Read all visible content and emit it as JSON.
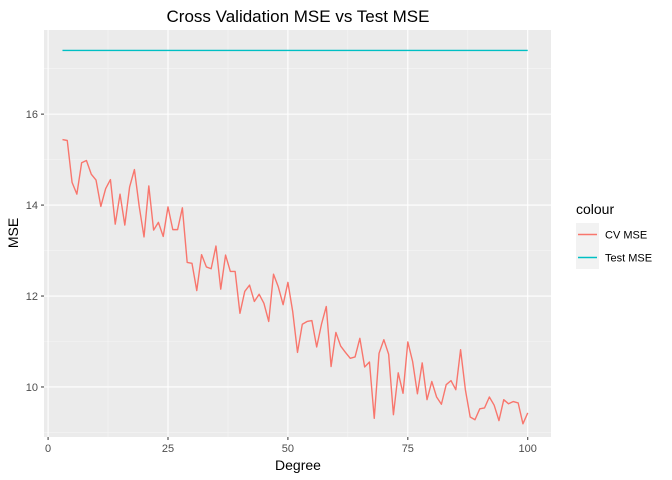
{
  "chart_data": {
    "type": "line",
    "title": "Cross Validation MSE vs Test MSE",
    "xlabel": "Degree",
    "ylabel": "MSE",
    "xlim": [
      -0.85,
      104.85
    ],
    "ylim": [
      8.9,
      17.85
    ],
    "x_ticks": [
      0,
      25,
      50,
      75,
      100
    ],
    "x_tick_labels": [
      "0",
      "25",
      "50",
      "75",
      "100"
    ],
    "y_ticks": [
      10,
      12,
      14,
      16
    ],
    "y_tick_labels": [
      "10",
      "12",
      "14",
      "16"
    ],
    "grid": true,
    "legend": {
      "title": "colour",
      "position": "right",
      "entries": [
        "CV MSE",
        "Test MSE"
      ]
    },
    "series": [
      {
        "name": "CV MSE",
        "color": "#F8766D",
        "x": [
          3,
          4,
          5,
          6,
          7,
          8,
          9,
          10,
          11,
          12,
          13,
          14,
          15,
          16,
          17,
          18,
          19,
          20,
          21,
          22,
          23,
          24,
          25,
          26,
          27,
          28,
          29,
          30,
          31,
          32,
          33,
          34,
          35,
          36,
          37,
          38,
          39,
          40,
          41,
          42,
          43,
          44,
          45,
          46,
          47,
          48,
          49,
          50,
          51,
          52,
          53,
          54,
          55,
          56,
          57,
          58,
          59,
          60,
          61,
          62,
          63,
          64,
          65,
          66,
          67,
          68,
          69,
          70,
          71,
          72,
          73,
          74,
          75,
          76,
          77,
          78,
          79,
          80,
          81,
          82,
          83,
          84,
          85,
          86,
          87,
          88,
          89,
          90,
          91,
          92,
          93,
          94,
          95,
          96,
          97,
          98,
          99,
          100
        ],
        "y": [
          15.44,
          15.42,
          14.5,
          14.24,
          14.93,
          14.98,
          14.68,
          14.55,
          13.97,
          14.36,
          14.56,
          13.58,
          14.24,
          13.56,
          14.4,
          14.78,
          13.97,
          13.3,
          14.42,
          13.45,
          13.62,
          13.31,
          13.96,
          13.46,
          13.46,
          13.94,
          12.74,
          12.72,
          12.12,
          12.91,
          12.64,
          12.6,
          13.1,
          12.15,
          12.9,
          12.54,
          12.54,
          11.62,
          12.1,
          12.24,
          11.88,
          12.04,
          11.84,
          11.44,
          12.48,
          12.2,
          11.81,
          12.3,
          11.66,
          10.76,
          11.38,
          11.44,
          11.46,
          10.88,
          11.38,
          11.77,
          10.45,
          11.2,
          10.9,
          10.76,
          10.63,
          10.66,
          11.07,
          10.44,
          10.55,
          9.31,
          10.74,
          11.04,
          10.72,
          9.39,
          10.31,
          9.86,
          10.99,
          10.56,
          9.85,
          10.53,
          9.72,
          10.12,
          9.78,
          9.62,
          10.05,
          10.14,
          9.94,
          10.82,
          9.94,
          9.34,
          9.28,
          9.52,
          9.54,
          9.78,
          9.6,
          9.26,
          9.72,
          9.63,
          9.68,
          9.65,
          9.19,
          9.43
        ]
      },
      {
        "name": "Test MSE",
        "color": "#00BFC4",
        "x": [
          3,
          100
        ],
        "y": [
          17.4,
          17.4
        ]
      }
    ]
  }
}
